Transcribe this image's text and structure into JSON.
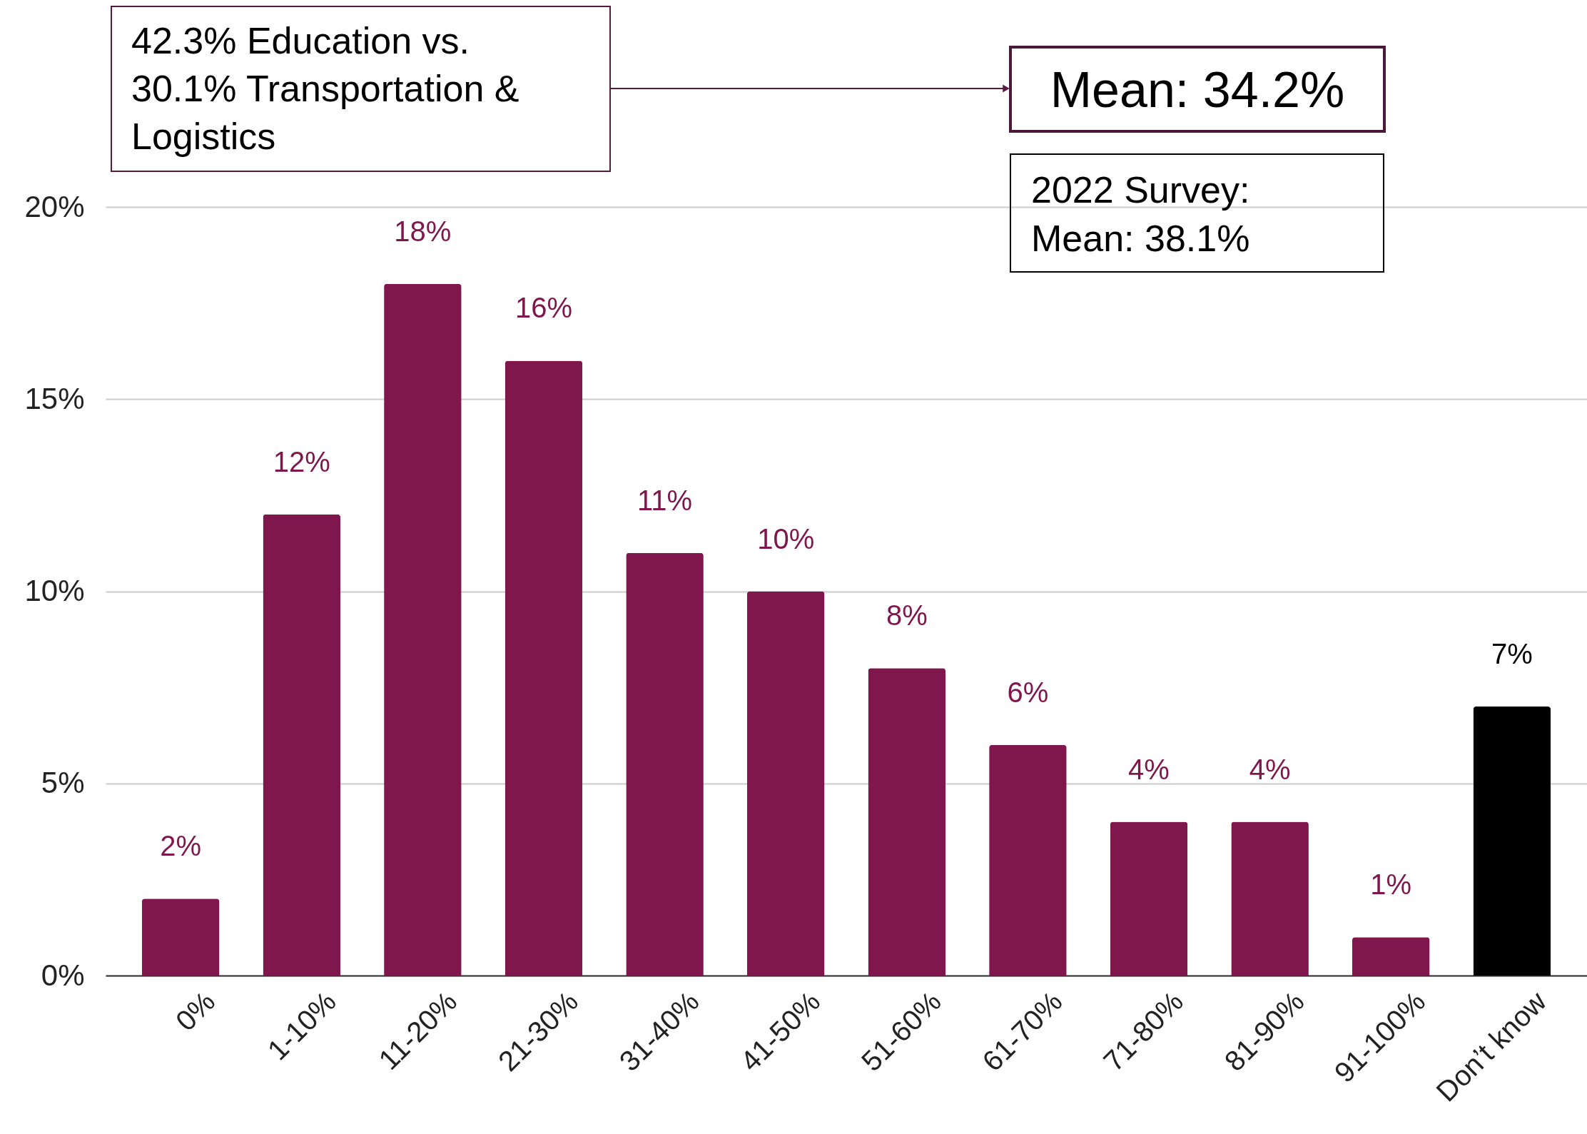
{
  "chart_data": {
    "type": "bar",
    "categories": [
      "0%",
      "1-10%",
      "11-20%",
      "21-30%",
      "31-40%",
      "41-50%",
      "51-60%",
      "61-70%",
      "71-80%",
      "81-90%",
      "91-100%",
      "Don’t know"
    ],
    "values": [
      2,
      12,
      18,
      16,
      11,
      10,
      8,
      6,
      4,
      4,
      1,
      7
    ],
    "colors": [
      "#7f164c",
      "#7f164c",
      "#7f164c",
      "#7f164c",
      "#7f164c",
      "#7f164c",
      "#7f164c",
      "#7f164c",
      "#7f164c",
      "#7f164c",
      "#7f164c",
      "#000000"
    ],
    "value_labels": [
      "2%",
      "12%",
      "18%",
      "16%",
      "11%",
      "10%",
      "8%",
      "6%",
      "4%",
      "4%",
      "1%",
      "7%"
    ],
    "ylim": [
      0,
      20
    ],
    "yticks": [
      {
        "value": 0,
        "label": "0%"
      },
      {
        "value": 5,
        "label": "5%"
      },
      {
        "value": 10,
        "label": "10%"
      },
      {
        "value": 15,
        "label": "15%"
      },
      {
        "value": 20,
        "label": "20%"
      }
    ],
    "grid": "y",
    "annotations": [
      "42.3% Education vs. 30.1% Transportation & Logistics",
      "Mean: 34.2%",
      "2022 Survey: Mean: 38.1%"
    ]
  }
}
